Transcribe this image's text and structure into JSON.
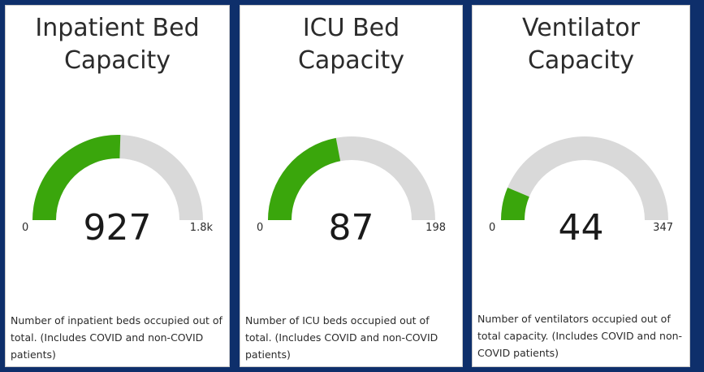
{
  "colors": {
    "fill": "#3aa60c",
    "track": "#d9d9d9"
  },
  "cards": [
    {
      "title_line1": "Inpatient Bed",
      "title_line2": "Capacity",
      "value": "927",
      "min": "0",
      "max": "1.8k",
      "fraction": 0.51,
      "description": "Number of inpatient beds occupied out of total. (Includes COVID and non-COVID patients)"
    },
    {
      "title_line1": "ICU Bed",
      "title_line2": "Capacity",
      "value": "87",
      "min": "0",
      "max": "198",
      "fraction": 0.44,
      "description": "Number of ICU beds occupied out of total. (Includes COVID and non-COVID patients)"
    },
    {
      "title_line1": "Ventilator",
      "title_line2": "Capacity",
      "value": "44",
      "min": "0",
      "max": "347",
      "fraction": 0.127,
      "description": "Number of ventilators occupied out of total capacity. (Includes COVID and non-COVID patients)"
    }
  ]
}
